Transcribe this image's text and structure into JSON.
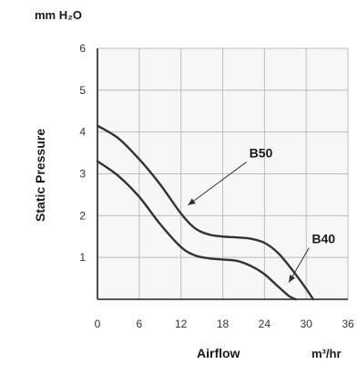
{
  "chart_data": {
    "type": "line",
    "ylabel_unit": "mm H₂O",
    "ylabel": "Static Pressure",
    "xlabel": "Airflow",
    "xlabel_unit": "m³/hr",
    "xlim": [
      0,
      36
    ],
    "ylim": [
      0,
      6
    ],
    "xticks": [
      "0",
      "6",
      "12",
      "18",
      "24",
      "30",
      "36"
    ],
    "yticks": [
      "1",
      "2",
      "3",
      "4",
      "5",
      "6"
    ],
    "grid": true,
    "series": [
      {
        "name": "B50",
        "x": [
          0,
          3,
          6,
          9,
          12,
          14,
          16,
          18,
          20,
          22,
          24,
          26,
          28,
          30,
          31
        ],
        "y": [
          4.15,
          3.85,
          3.35,
          2.75,
          2.05,
          1.7,
          1.55,
          1.5,
          1.48,
          1.45,
          1.35,
          1.1,
          0.7,
          0.25,
          0
        ]
      },
      {
        "name": "B40",
        "x": [
          0,
          3,
          6,
          9,
          12,
          14,
          16,
          18,
          20,
          22,
          24,
          26,
          27.5,
          28.5
        ],
        "y": [
          3.3,
          2.95,
          2.45,
          1.8,
          1.25,
          1.05,
          0.98,
          0.95,
          0.92,
          0.8,
          0.6,
          0.3,
          0.08,
          0
        ]
      }
    ],
    "annotations": [
      {
        "text": "B50",
        "label_x": 23.5,
        "label_y": 3.5,
        "arrow_to": [
          13,
          2.25
        ]
      },
      {
        "text": "B40",
        "label_x": 32.5,
        "label_y": 1.45,
        "arrow_to": [
          27.5,
          0.4
        ]
      }
    ]
  }
}
